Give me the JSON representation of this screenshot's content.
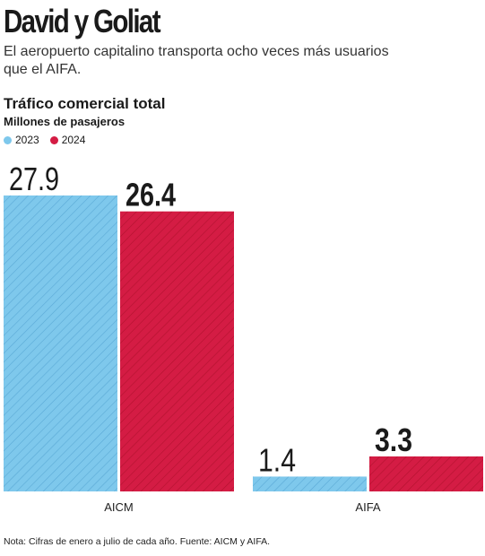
{
  "title": "David y Goliat",
  "subtitle": "El aeropuerto capitalino transporta ocho veces más usuarios que el AIFA.",
  "note": "Nota: Cifras de enero a julio de cada año. Fuente: AICM y AIFA.",
  "colors": {
    "y2023": "#7ec8ec",
    "y2024": "#d41c44"
  },
  "chart_data": {
    "type": "bar",
    "title": "Tráfico comercial total",
    "ylabel": "Millones de pasajeros",
    "categories": [
      "AICM",
      "AIFA"
    ],
    "series": [
      {
        "name": "2023",
        "values": [
          27.9,
          1.4
        ]
      },
      {
        "name": "2024",
        "values": [
          26.4,
          3.3
        ]
      }
    ],
    "value_labels": [
      [
        "27.9",
        "1.4"
      ],
      [
        "26.4",
        "3.3"
      ]
    ],
    "ylim": [
      0,
      27.9
    ],
    "legend": "top-left",
    "grid": false
  }
}
